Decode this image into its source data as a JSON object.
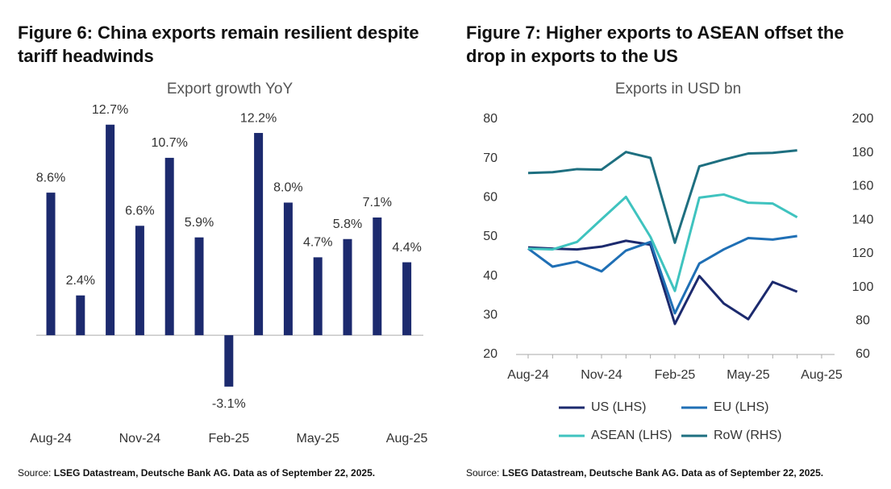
{
  "chart_data": [
    {
      "type": "bar",
      "heading": "Figure 6: China exports remain resilient despite tariff headwinds",
      "title": "Export growth YoY",
      "categories": [
        "Aug-24",
        null,
        null,
        "Nov-24",
        null,
        null,
        "Feb-25",
        null,
        null,
        "May-25",
        null,
        null,
        "Aug-25"
      ],
      "values": [
        8.6,
        2.4,
        12.7,
        6.6,
        10.7,
        5.9,
        -3.1,
        12.2,
        8.0,
        4.7,
        5.8,
        7.1,
        4.4
      ],
      "value_labels": [
        "8.6%",
        "2.4%",
        "12.7%",
        "6.6%",
        "10.7%",
        "5.9%",
        "-3.1%",
        "12.2%",
        "8.0%",
        "4.7%",
        "5.8%",
        "7.1%",
        "4.4%"
      ],
      "color": "#1c2a6e",
      "ylim": [
        -5,
        14
      ],
      "source_label": "Source:",
      "source": "LSEG Datastream, Deutsche Bank AG. Data as of September 22, 2025."
    },
    {
      "type": "line",
      "heading": "Figure 7: Higher exports to ASEAN offset the drop in exports to the US",
      "title": "Exports in USD bn",
      "categories": [
        "Aug-24",
        null,
        null,
        "Nov-24",
        null,
        null,
        "Feb-25",
        null,
        null,
        "May-25",
        null,
        null,
        "Aug-25"
      ],
      "series": [
        {
          "name": "US (LHS)",
          "color": "#1c2a6e",
          "values": [
            47.3,
            47,
            46.8,
            47.5,
            49,
            48,
            27.8,
            40,
            33,
            29,
            38.5,
            36,
            null
          ]
        },
        {
          "name": "EU (LHS)",
          "color": "#1f6fb5",
          "values": [
            47,
            42.4,
            43.7,
            41.2,
            46.5,
            48.7,
            30.5,
            43.2,
            46.8,
            49.7,
            49.3,
            50.2,
            null
          ]
        },
        {
          "name": "ASEAN (LHS)",
          "color": "#3fc3bf",
          "values": [
            47,
            46.8,
            48.7,
            54.5,
            60.2,
            50,
            36.2,
            60,
            60.8,
            58.7,
            58.5,
            55,
            null
          ]
        },
        {
          "name": "RoW (RHS)",
          "color": "#1e6f80",
          "axis": "y2",
          "values": [
            168,
            168.5,
            170.3,
            170,
            180.5,
            177,
            126.5,
            172,
            176,
            179.6,
            180,
            181.5,
            null
          ]
        }
      ],
      "ylim": [
        20,
        80
      ],
      "yticks": [
        20,
        30,
        40,
        50,
        60,
        70,
        80
      ],
      "y2lim": [
        60,
        200
      ],
      "y2ticks": [
        60,
        80,
        100,
        120,
        140,
        160,
        180,
        200
      ],
      "source_label": "Source:",
      "source": "LSEG Datastream, Deutsche Bank AG. Data as of September 22, 2025."
    }
  ]
}
